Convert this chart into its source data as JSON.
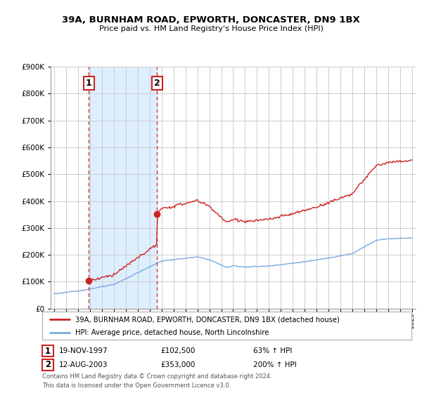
{
  "title": "39A, BURNHAM ROAD, EPWORTH, DONCASTER, DN9 1BX",
  "subtitle": "Price paid vs. HM Land Registry's House Price Index (HPI)",
  "legend_line1": "39A, BURNHAM ROAD, EPWORTH, DONCASTER, DN9 1BX (detached house)",
  "legend_line2": "HPI: Average price, detached house, North Lincolnshire",
  "transaction1_date": "19-NOV-1997",
  "transaction1_price": "£102,500",
  "transaction1_hpi": "63% ↑ HPI",
  "transaction1_year": 1997.89,
  "transaction1_value": 102500,
  "transaction2_date": "12-AUG-2003",
  "transaction2_price": "£353,000",
  "transaction2_hpi": "200% ↑ HPI",
  "transaction2_year": 2003.62,
  "transaction2_value": 353000,
  "hpi_color": "#7aaadd",
  "price_color": "#cc2222",
  "vline_color": "#cc2222",
  "shade_color": "#ddeeff",
  "background_color": "#ffffff",
  "grid_color": "#cccccc",
  "ylim_min": 0,
  "ylim_max": 900000,
  "xlim_min": 1994.7,
  "xlim_max": 2025.3,
  "footnote": "Contains HM Land Registry data © Crown copyright and database right 2024.\nThis data is licensed under the Open Government Licence v3.0.",
  "years_start": 1995,
  "years_end": 2025
}
